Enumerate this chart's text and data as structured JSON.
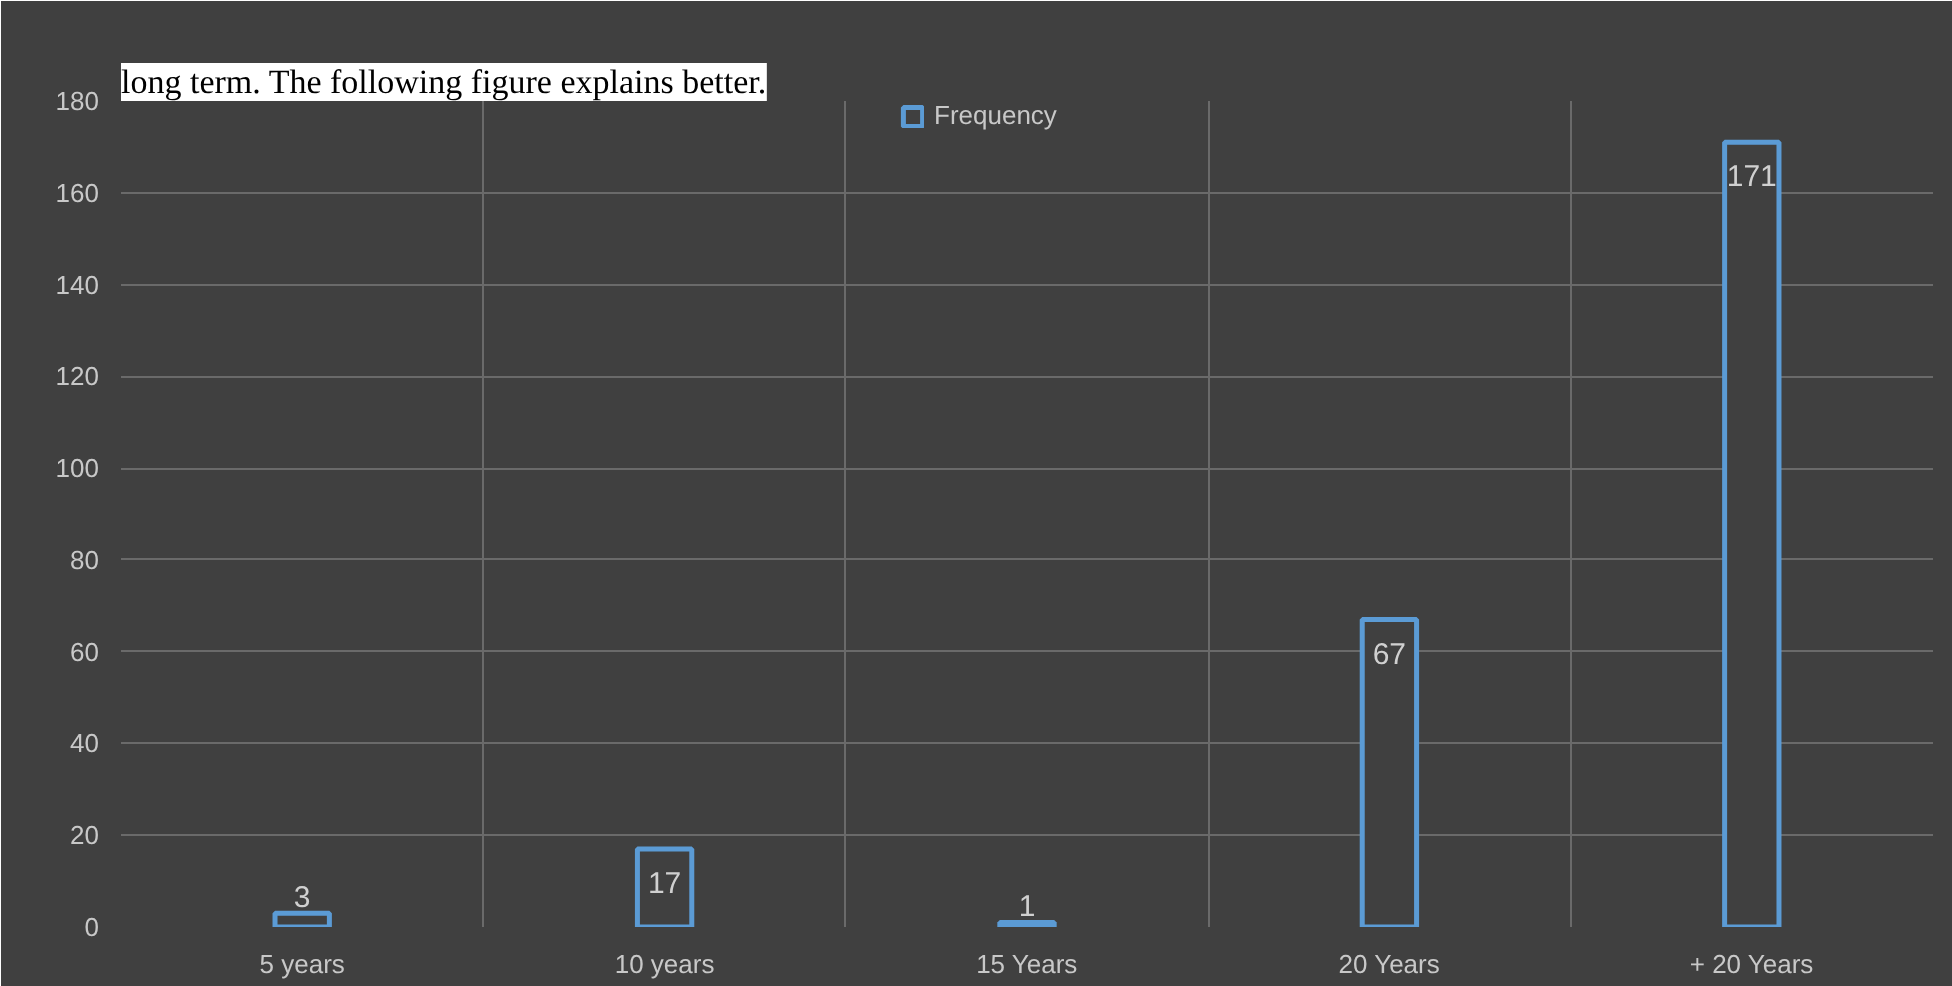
{
  "chart_data": {
    "type": "bar",
    "annotations": [
      "long term. The following figure explains better."
    ],
    "categories": [
      "5 years",
      "10 years",
      "15 Years",
      "20 Years",
      "+ 20 Years"
    ],
    "series": [
      {
        "name": "Frequency",
        "color": "#5b9bd5",
        "values": [
          3,
          17,
          1,
          67,
          171
        ]
      }
    ],
    "ylim": [
      0,
      180
    ],
    "yticks": [
      0,
      20,
      40,
      60,
      80,
      100,
      120,
      140,
      160,
      180
    ],
    "grid": true,
    "legend": "top",
    "data_labels": true
  }
}
